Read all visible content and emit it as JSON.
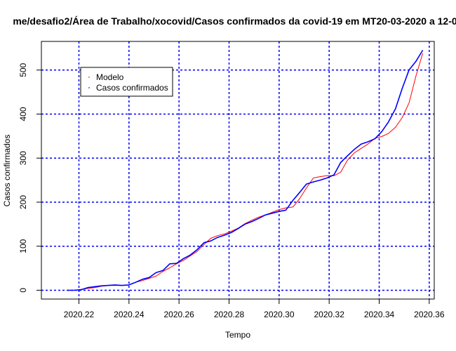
{
  "chart_data": {
    "type": "line",
    "title": "me/desafio2/Área de Trabalho/xocovid/Casos confirmados da covid-19 em MT20-03-2020 a 12-0",
    "xlabel": "Tempo",
    "ylabel": "Casos confirmados",
    "xlim": [
      2020.205,
      2020.362
    ],
    "ylim": [
      -20,
      565
    ],
    "x_ticks": [
      2020.22,
      2020.24,
      2020.26,
      2020.28,
      2020.3,
      2020.32,
      2020.34,
      2020.36
    ],
    "x_tick_labels": [
      "2020.22",
      "2020.24",
      "2020.26",
      "2020.28",
      "2020.30",
      "2020.32",
      "2020.34",
      "2020.36"
    ],
    "y_ticks": [
      0,
      100,
      200,
      300,
      400,
      500
    ],
    "y_tick_labels": [
      "0",
      "100",
      "200",
      "300",
      "400",
      "500"
    ],
    "grid": true,
    "grid_color": "#0000ff",
    "legend_position": "top-left",
    "series": [
      {
        "name": "Modelo",
        "color": "#ff0000",
        "x": [
          2020.2153,
          2020.218,
          2020.2208,
          2020.2235,
          2020.2262,
          2020.229,
          2020.2317,
          2020.2344,
          2020.2372,
          2020.2399,
          2020.2426,
          2020.2454,
          2020.2481,
          2020.2508,
          2020.2536,
          2020.2563,
          2020.259,
          2020.2618,
          2020.2645,
          2020.2672,
          2020.27,
          2020.2727,
          2020.2754,
          2020.2782,
          2020.2809,
          2020.2836,
          2020.2863,
          2020.2891,
          2020.2918,
          2020.2945,
          2020.2973,
          2020.3,
          2020.3027,
          2020.3055,
          2020.3082,
          2020.3109,
          2020.3137,
          2020.3164,
          2020.3191,
          2020.3219,
          2020.3246,
          2020.3273,
          2020.3301,
          2020.3328,
          2020.3355,
          2020.3383,
          2020.341,
          2020.3437,
          2020.3465,
          2020.3492,
          2020.3519,
          2020.3547,
          2020.3574
        ],
        "y": [
          0,
          0,
          2,
          4,
          6,
          9,
          11,
          11,
          11,
          12,
          18,
          22,
          27,
          32,
          43,
          51,
          60,
          68,
          78,
          88,
          104,
          118,
          124,
          128,
          134,
          141,
          151,
          159,
          166,
          171,
          177,
          183,
          187,
          189,
          208,
          232,
          255,
          258,
          260,
          260,
          268,
          295,
          312,
          322,
          332,
          345,
          349,
          356,
          370,
          392,
          425,
          487,
          538
        ]
      },
      {
        "name": "Casos confirmados",
        "color": "#0000ff",
        "x": [
          2020.2153,
          2020.218,
          2020.2208,
          2020.2235,
          2020.2262,
          2020.229,
          2020.2317,
          2020.2344,
          2020.2372,
          2020.2399,
          2020.2426,
          2020.2454,
          2020.2481,
          2020.2508,
          2020.2536,
          2020.2563,
          2020.259,
          2020.2618,
          2020.2645,
          2020.2672,
          2020.27,
          2020.2727,
          2020.2754,
          2020.2782,
          2020.2809,
          2020.2836,
          2020.2863,
          2020.2891,
          2020.2918,
          2020.2945,
          2020.2973,
          2020.3,
          2020.3027,
          2020.3055,
          2020.3082,
          2020.3109,
          2020.3137,
          2020.3164,
          2020.3191,
          2020.3219,
          2020.3246,
          2020.3273,
          2020.3301,
          2020.3328,
          2020.3355,
          2020.3383,
          2020.341,
          2020.3437,
          2020.3465,
          2020.3492,
          2020.3519,
          2020.3547,
          2020.3574
        ],
        "y": [
          0,
          0,
          1,
          6,
          8,
          10,
          11,
          12,
          11,
          12,
          18,
          25,
          29,
          40,
          45,
          60,
          61,
          72,
          80,
          92,
          108,
          112,
          120,
          125,
          131,
          140,
          150,
          156,
          163,
          171,
          175,
          179,
          182,
          204,
          222,
          241,
          246,
          250,
          255,
          262,
          290,
          305,
          320,
          332,
          337,
          344,
          360,
          382,
          412,
          458,
          500,
          520,
          545
        ]
      }
    ]
  }
}
